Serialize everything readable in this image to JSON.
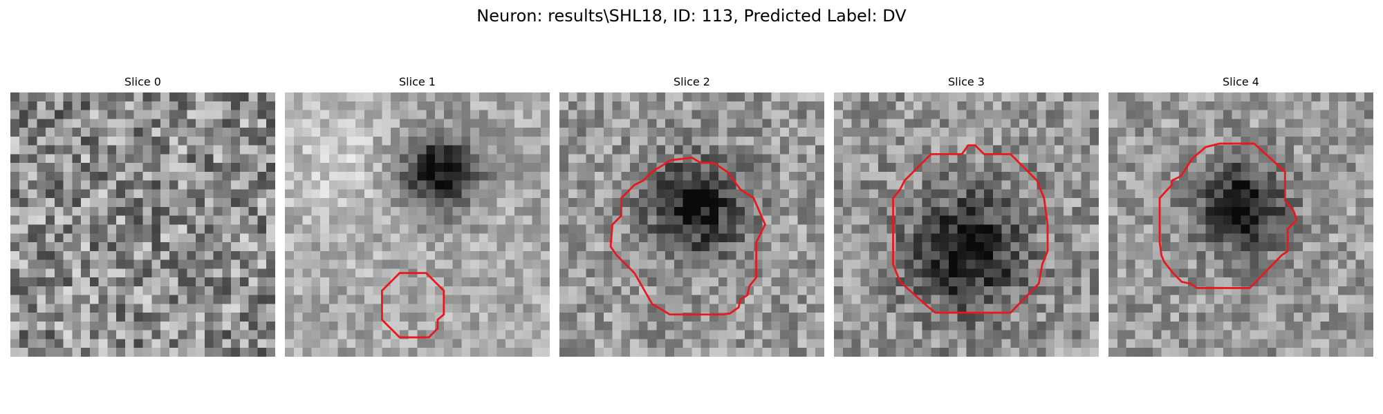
{
  "figure": {
    "title": "Neuron: results\\SHL18, ID: 113, Predicted Label: DV"
  },
  "colors": {
    "contour": "#e8181c",
    "background": "#ffffff"
  },
  "panels": [
    {
      "title": "Slice 0",
      "has_contour": false,
      "blob_strength": 0.05,
      "brightness": 0.56,
      "noise": 0.3
    },
    {
      "title": "Slice 1",
      "has_contour": true,
      "blob_strength": 0.62,
      "brightness": 0.66,
      "noise": 0.16
    },
    {
      "title": "Slice 2",
      "has_contour": true,
      "blob_strength": 0.55,
      "brightness": 0.6,
      "noise": 0.2
    },
    {
      "title": "Slice 3",
      "has_contour": true,
      "blob_strength": 0.52,
      "brightness": 0.58,
      "noise": 0.21
    },
    {
      "title": "Slice 4",
      "has_contour": true,
      "blob_strength": 0.58,
      "brightness": 0.6,
      "noise": 0.19
    }
  ]
}
